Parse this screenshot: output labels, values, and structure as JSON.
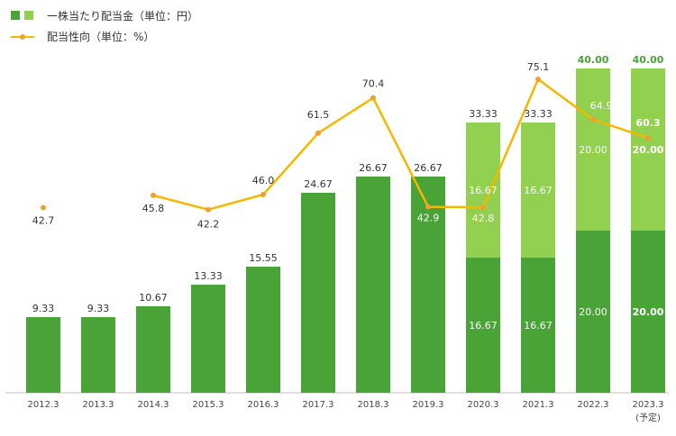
{
  "chart_data": {
    "type": "bar",
    "categories": [
      "2012.3",
      "2013.3",
      "2014.3",
      "2015.3",
      "2016.3",
      "2017.3",
      "2018.3",
      "2019.3",
      "2020.3",
      "2021.3",
      "2022.3",
      "2023.3"
    ],
    "category_notes": [
      "",
      "",
      "",
      "",
      "",
      "",
      "",
      "",
      "",
      "",
      "",
      "(予定)"
    ],
    "series": [
      {
        "kind": "bar",
        "values": [
          9.33,
          9.33,
          10.67,
          13.33,
          15.55,
          24.67,
          26.67,
          26.67,
          16.67,
          16.67,
          20.0,
          20.0
        ],
        "labels": [
          "9.33",
          "9.33",
          "10.67",
          "13.33",
          "15.55",
          "24.67",
          "26.67",
          "26.67",
          "16.67",
          "16.67",
          "20.00",
          "20.00"
        ]
      },
      {
        "kind": "bar",
        "values": [
          0,
          0,
          0,
          0,
          0,
          0,
          0,
          0,
          16.67,
          16.67,
          20.0,
          20.0
        ],
        "labels": [
          "",
          "",
          "",
          "",
          "",
          "",
          "",
          "",
          "16.67",
          "16.67",
          "20.00",
          "20.00"
        ]
      },
      {
        "kind": "line",
        "values": [
          42.7,
          null,
          45.8,
          42.2,
          46.0,
          61.5,
          70.4,
          42.9,
          42.8,
          75.1,
          64.9,
          60.3
        ],
        "labels": [
          "42.7",
          "",
          "45.8",
          "42.2",
          "46.0",
          "61.5",
          "70.4",
          "42.9",
          "42.8",
          "75.1",
          "64.9",
          "60.3"
        ]
      }
    ],
    "totals": [
      "",
      "",
      "",
      "",
      "",
      "",
      "",
      "",
      "33.33",
      "33.33",
      "40.00",
      "40.00"
    ],
    "legend": [
      "一株当たり配当金（単位：円）",
      "配当性向（単位：%）"
    ],
    "legend_position": "top-left",
    "ylim_bar": [
      0,
      44
    ],
    "ylim_line": [
      -4,
      86
    ],
    "grid": false,
    "colors": {
      "bar_dark": "#4aa336",
      "bar_light": "#92d050",
      "line": "#f5b800",
      "marker": "#f0a030",
      "total_bold": "#4aa336"
    }
  }
}
